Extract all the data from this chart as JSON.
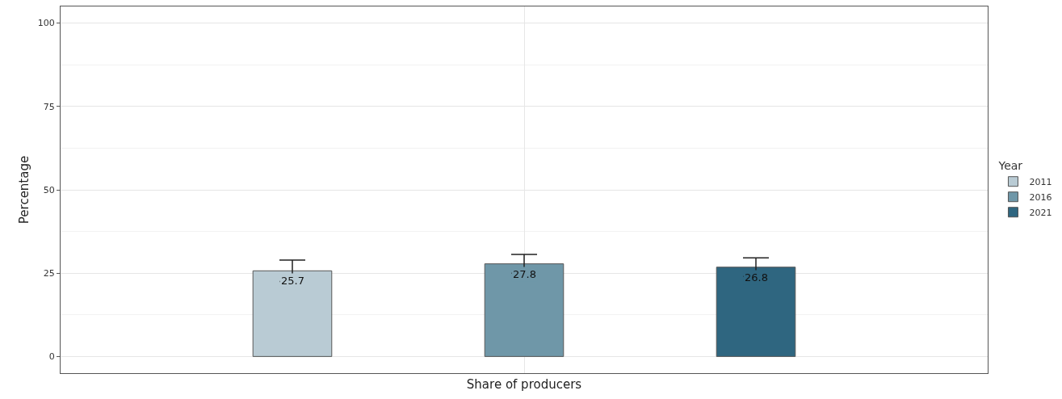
{
  "chart_data": {
    "type": "bar",
    "categories": [
      "Share of producers"
    ],
    "ylabel": "Percentage",
    "legend_title": "Year",
    "series": [
      {
        "name": "2011",
        "color": "#b9cbd4",
        "values": [
          25.7
        ],
        "errors": [
          3.2
        ]
      },
      {
        "name": "2016",
        "color": "#6f97a8",
        "values": [
          27.8
        ],
        "errors": [
          2.8
        ]
      },
      {
        "name": "2021",
        "color": "#2f6680",
        "values": [
          26.8
        ],
        "errors": [
          2.8
        ]
      }
    ],
    "ylim": [
      -5,
      105
    ],
    "yticks": [
      0,
      25,
      50,
      75,
      100
    ],
    "grid": true,
    "legend": "right",
    "data_labels": true
  }
}
